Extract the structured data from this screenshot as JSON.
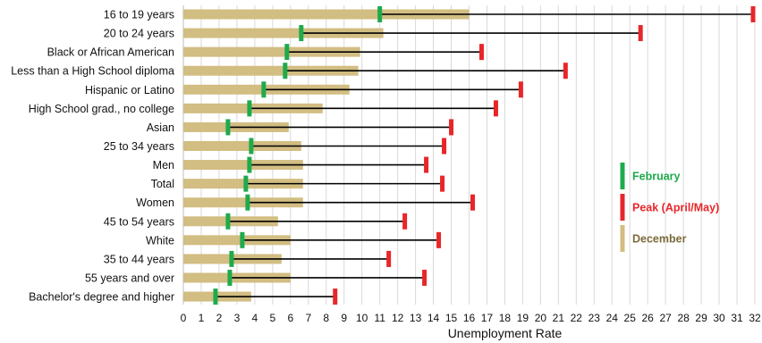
{
  "chart_data": {
    "type": "bar",
    "xlabel": "Unemployment Rate",
    "ylabel": "",
    "xlim": [
      0,
      32
    ],
    "x_ticks": [
      0,
      1,
      2,
      3,
      4,
      5,
      6,
      7,
      8,
      9,
      10,
      11,
      12,
      13,
      14,
      15,
      16,
      17,
      18,
      19,
      20,
      21,
      22,
      23,
      24,
      25,
      26,
      27,
      28,
      29,
      30,
      31,
      32
    ],
    "grid": "vertical",
    "legend_position": "right",
    "categories": [
      "16 to 19 years",
      "20 to 24 years",
      "Black or African American",
      "Less than a High School diploma",
      "Hispanic or Latino",
      "High School grad., no college",
      "Asian",
      "25 to 34 years",
      "Men",
      "Total",
      "Women",
      "45 to 54 years",
      "White",
      "35 to 44 years",
      "55 years and over",
      "Bachelor's degree and higher"
    ],
    "series": [
      {
        "name": "February",
        "color": "#1faa4b",
        "marker": "tick",
        "values": [
          11.0,
          6.6,
          5.8,
          5.7,
          4.5,
          3.7,
          2.5,
          3.8,
          3.7,
          3.5,
          3.6,
          2.5,
          3.3,
          2.7,
          2.6,
          1.8
        ]
      },
      {
        "name": "Peak (April/May)",
        "color": "#e8262a",
        "marker": "tick",
        "values": [
          31.9,
          25.6,
          16.7,
          21.4,
          18.9,
          17.5,
          15.0,
          14.6,
          13.6,
          14.5,
          16.2,
          12.4,
          14.3,
          11.5,
          13.5,
          8.5
        ]
      },
      {
        "name": "December",
        "color": "#d2bd82",
        "marker": "bar",
        "values": [
          16.0,
          11.2,
          9.9,
          9.8,
          9.3,
          7.8,
          5.9,
          6.6,
          6.7,
          6.7,
          6.7,
          5.3,
          6.0,
          5.5,
          6.0,
          3.8
        ]
      }
    ]
  }
}
